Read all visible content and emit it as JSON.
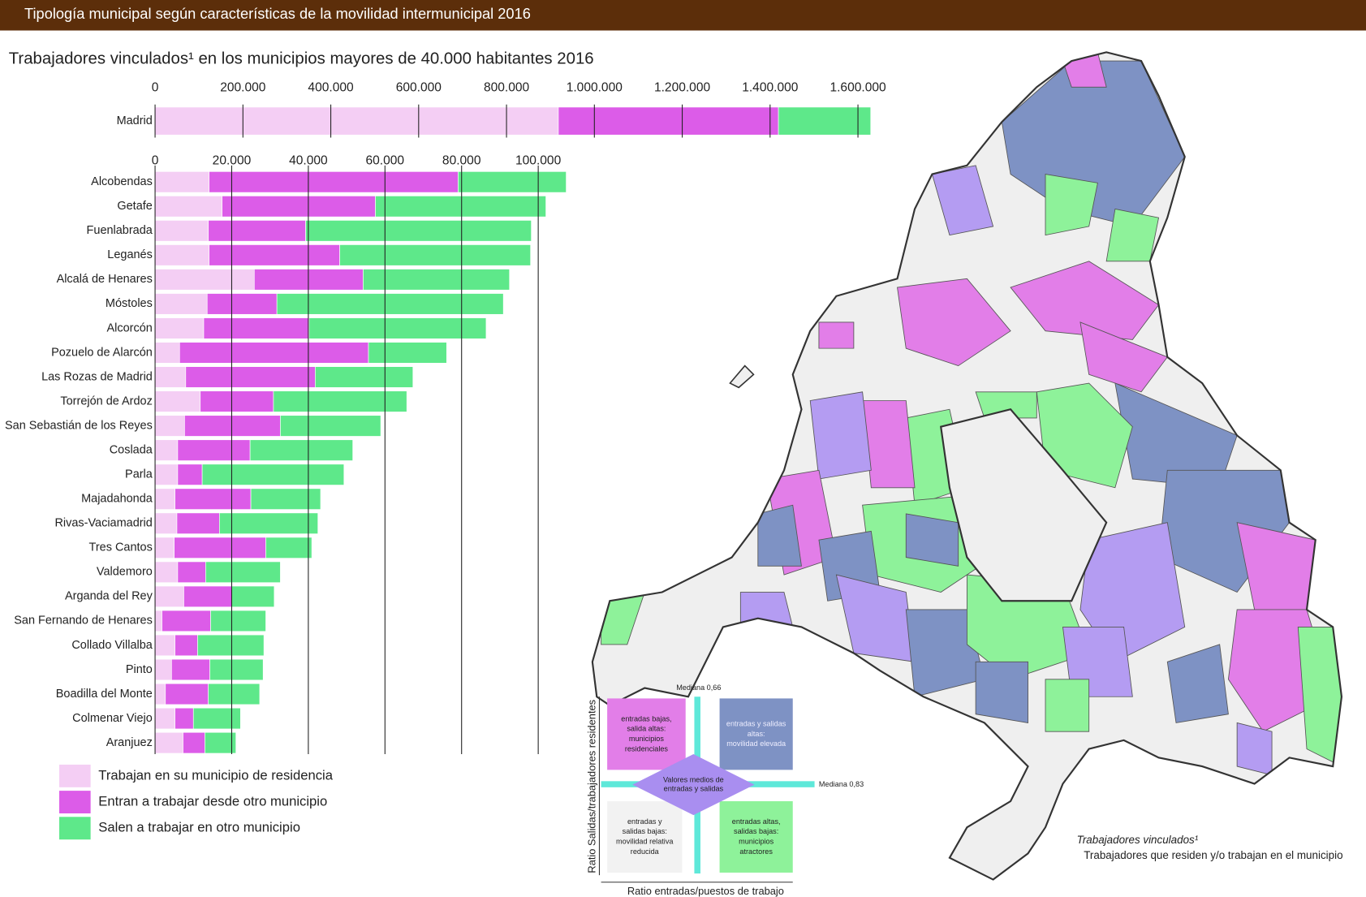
{
  "header": {
    "title": "Tipología municipal según características de la movilidad intermunicipal 2016"
  },
  "chart_data": [
    {
      "type": "bar",
      "orientation": "horizontal",
      "stacked": true,
      "title": "Trabajadores vinculados¹ en los municipios mayores de 40.000 habitantes 2016",
      "categories": [
        "Madrid"
      ],
      "series": [
        {
          "color": "#f4cef4",
          "values": [
            918000
          ]
        },
        {
          "color": "#dc5ce8",
          "values": [
            501000
          ]
        },
        {
          "color": "#5ee88a",
          "values": [
            210000
          ]
        }
      ],
      "xlim": [
        0,
        1640000
      ],
      "xticks": [
        0,
        {
          "value": 200000,
          "label": "200.000"
        },
        {
          "value": 400000,
          "label": "400.000"
        },
        {
          "value": 600000,
          "label": "600.000"
        },
        {
          "value": 800000,
          "label": "800.000"
        },
        {
          "value": 1000000,
          "label": "1.000.000"
        },
        {
          "value": 1200000,
          "label": "1.200.000"
        },
        {
          "value": 1400000,
          "label": "1.400.000"
        },
        {
          "value": 1600000,
          "label": "1.600.000"
        }
      ],
      "grid": true
    },
    {
      "type": "bar",
      "orientation": "horizontal",
      "stacked": true,
      "categories": [
        "Alcobendas",
        "Getafe",
        "Fuenlabrada",
        "Leganés",
        "Alcalá de Henares",
        "Móstoles",
        "Alcorcón",
        "Pozuelo de Alarcón",
        "Las Rozas de Madrid",
        "Torrejón de Ardoz",
        "San Sebastián de los Reyes",
        "Coslada",
        "Parla",
        "Majadahonda",
        "Rivas-Vaciamadrid",
        "Tres Cantos",
        "Valdemoro",
        "Arganda del Rey",
        "San Fernando de Henares",
        "Collado Villalba",
        "Pinto",
        "Boadilla del Monte",
        "Colmenar Viejo",
        "Aranjuez"
      ],
      "series": [
        {
          "name": "Trabajan en su municipio de residencia",
          "color": "#f4cef4",
          "values": [
            14100,
            17500,
            13900,
            14100,
            25900,
            13600,
            12700,
            6400,
            8000,
            11800,
            7700,
            5900,
            5900,
            5200,
            5700,
            5000,
            5900,
            7500,
            1800,
            5200,
            4300,
            2700,
            5200,
            7300
          ]
        },
        {
          "name": "Entran a trabajar desde otro municipio",
          "color": "#dc5ce8",
          "values": [
            65000,
            40000,
            25400,
            34100,
            28400,
            18200,
            27500,
            49300,
            33800,
            19100,
            25000,
            18900,
            6400,
            19800,
            11100,
            23900,
            7300,
            12500,
            12700,
            5900,
            10000,
            11200,
            4800,
            5700
          ]
        },
        {
          "name": "Salen a trabajar en otro municipio",
          "color": "#5ee88a",
          "values": [
            28200,
            44500,
            58900,
            49800,
            38200,
            59100,
            46200,
            20400,
            25500,
            34800,
            26200,
            26800,
            37000,
            18200,
            25700,
            12000,
            19500,
            11100,
            14400,
            17300,
            13900,
            13400,
            12300,
            8100
          ]
        }
      ],
      "xlim": [
        0,
        108000
      ],
      "xticks": [
        0,
        {
          "value": 20000,
          "label": "20.000"
        },
        {
          "value": 40000,
          "label": "40.000"
        },
        {
          "value": 60000,
          "label": "60.000"
        },
        {
          "value": 80000,
          "label": "80.000"
        },
        {
          "value": 100000,
          "label": "100.000"
        }
      ],
      "grid": true
    }
  ],
  "diagram": {
    "y_label": "Ratio Salidas/trabajadores residentes",
    "x_label": "Ratio entradas/puestos de trabajo",
    "median_x": "Mediana 0,66",
    "median_y": "Mediana 0,83",
    "center": [
      "Valores medios de",
      "entradas y salidas"
    ],
    "quadrants": [
      {
        "lines": [
          "entradas bajas,",
          "salida altas:",
          "municipios",
          "residenciales"
        ]
      },
      {
        "lines": [
          "entradas y salidas",
          "altas:",
          "movilidad elevada"
        ]
      },
      {
        "lines": [
          "entradas y",
          "salidas bajas:",
          "movilidad relativa",
          "reducida"
        ]
      },
      {
        "lines": [
          "entradas altas,",
          "salidas bajas:",
          "municipios",
          "atractores"
        ]
      }
    ]
  },
  "note": {
    "term": "Trabajadores vinculados¹",
    "definition": "Trabajadores que residen y/o trabajan en el municipio"
  }
}
